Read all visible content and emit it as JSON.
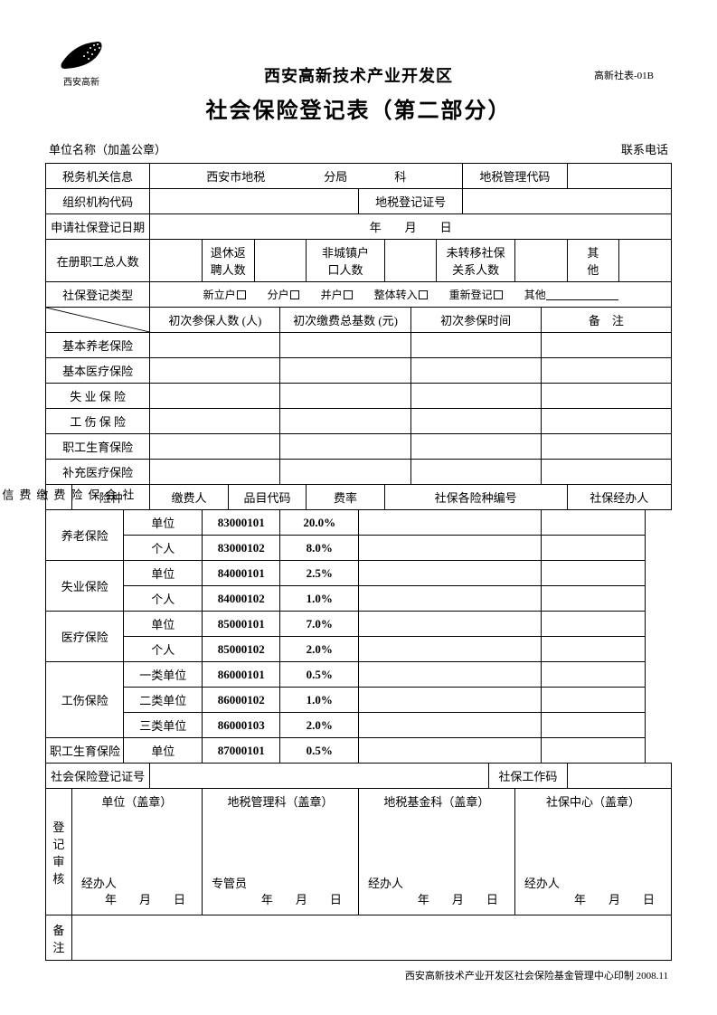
{
  "logo_label": "西安高新",
  "form_code": "高新社表-01B",
  "header_sub": "西安高新技术产业开发区",
  "header_main": "社会保险登记表（第二部分）",
  "top_left": "单位名称（加盖公章）",
  "top_right": "联系电话",
  "r1": {
    "tax_info": "税务机关信息",
    "tax_text": "西安市地税　　　　　分局　　　　科",
    "tax_code_lbl": "地税管理代码"
  },
  "r2": {
    "org_code": "组织机构代码",
    "tax_reg": "地税登记证号"
  },
  "r3": {
    "apply_date": "申请社保登记日期",
    "date_text": "年　　月　　日"
  },
  "r4": {
    "total_emp": "在册职工总人数",
    "retire": "退休返\n聘人数",
    "nonurban": "非城镇户\n口人数",
    "untransfer": "未转移社保\n关系人数",
    "other": "其\n他"
  },
  "r5": {
    "reg_type": "社保登记类型",
    "opts": [
      "新立户",
      "分户",
      "并户",
      "整体转入",
      "重新登记",
      "其他"
    ]
  },
  "sec1_headers": {
    "first_people": "初次参保人数 (人)",
    "first_base": "初次缴费总基数 (元)",
    "first_time": "初次参保时间",
    "remark": "备　注"
  },
  "sec1_rows": [
    "基本养老保险",
    "基本医疗保险",
    "失 业 保 险",
    "工 伤 保 险",
    "职工生育保险",
    "补充医疗保险"
  ],
  "sec2": {
    "vtitle": "社会保险费缴费信息",
    "headers": {
      "kind": "险种",
      "payer": "缴费人",
      "item_code": "品目代码",
      "rate": "费率",
      "ins_no": "社保各险种编号",
      "handler": "社保经办人"
    },
    "rows": [
      {
        "kind": "养老保险",
        "items": [
          {
            "payer": "单位",
            "code": "83000101",
            "rate": "20.0%"
          },
          {
            "payer": "个人",
            "code": "83000102",
            "rate": "8.0%"
          }
        ]
      },
      {
        "kind": "失业保险",
        "items": [
          {
            "payer": "单位",
            "code": "84000101",
            "rate": "2.5%"
          },
          {
            "payer": "个人",
            "code": "84000102",
            "rate": "1.0%"
          }
        ]
      },
      {
        "kind": "医疗保险",
        "items": [
          {
            "payer": "单位",
            "code": "85000101",
            "rate": "7.0%"
          },
          {
            "payer": "个人",
            "code": "85000102",
            "rate": "2.0%"
          }
        ]
      },
      {
        "kind": "工伤保险",
        "items": [
          {
            "payer": "一类单位",
            "code": "86000101",
            "rate": "0.5%"
          },
          {
            "payer": "二类单位",
            "code": "86000102",
            "rate": "1.0%"
          },
          {
            "payer": "三类单位",
            "code": "86000103",
            "rate": "2.0%"
          }
        ]
      },
      {
        "kind": "职工生育保险",
        "items": [
          {
            "payer": "单位",
            "code": "87000101",
            "rate": "0.5%"
          }
        ]
      }
    ]
  },
  "reg_no_row": {
    "reg_no": "社会保险登记证号",
    "work_code": "社保工作码"
  },
  "approval": {
    "vtitle": "登记\n审核",
    "cols": [
      {
        "title": "单位（盖章）",
        "handler": "经办人",
        "date": "年　月　日"
      },
      {
        "title": "地税管理科（盖章）",
        "handler": "专管员",
        "date": "年　月　日"
      },
      {
        "title": "地税基金科（盖章）",
        "handler": "经办人",
        "date": "年　月　日"
      },
      {
        "title": "社保中心（盖章）",
        "handler": "经办人",
        "date": "年　月　日"
      }
    ]
  },
  "remark_row": "备\n注",
  "footer": "西安高新技术产业开发区社会保险基金管理中心印制  2008.11"
}
